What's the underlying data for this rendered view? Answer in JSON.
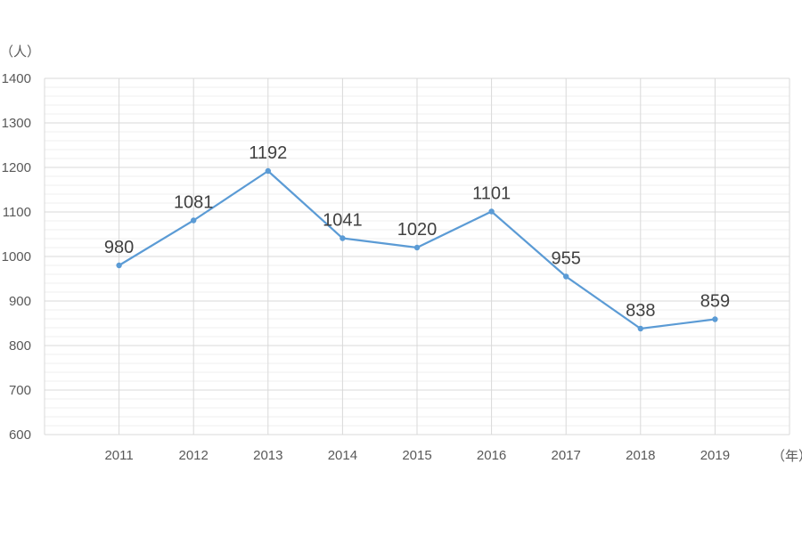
{
  "chart_data": {
    "type": "line",
    "title": "",
    "xlabel": "",
    "ylabel": "",
    "y_unit": "（人）",
    "x_unit": "（年）",
    "categories": [
      "2011",
      "2012",
      "2013",
      "2014",
      "2015",
      "2016",
      "2017",
      "2018",
      "2019"
    ],
    "series": [
      {
        "values": [
          980,
          1081,
          1192,
          1041,
          1020,
          1101,
          955,
          838,
          859
        ],
        "color": "#5b9bd5",
        "data_labels": true,
        "markers": true
      }
    ],
    "ylim": [
      600,
      1400
    ],
    "y_ticks": [
      "600",
      "700",
      "800",
      "900",
      "1000",
      "1100",
      "1200",
      "1300",
      "1400"
    ],
    "grid": true,
    "minor_grid": true,
    "legend": "none"
  }
}
